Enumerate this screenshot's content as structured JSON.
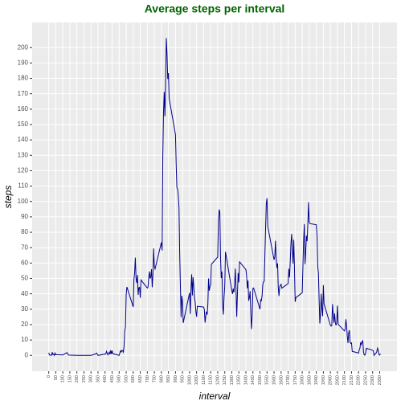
{
  "chart_data": {
    "type": "line",
    "title": "Average  steps per interval",
    "xlabel": "interval",
    "ylabel": "steps",
    "x": [
      0,
      5,
      10,
      15,
      20,
      25,
      30,
      35,
      40,
      45,
      50,
      55,
      100,
      130,
      140,
      200,
      230,
      300,
      330,
      340,
      350,
      405,
      410,
      420,
      430,
      435,
      440,
      445,
      450,
      455,
      500,
      505,
      510,
      515,
      520,
      525,
      530,
      535,
      540,
      545,
      550,
      555,
      600,
      605,
      610,
      615,
      620,
      625,
      630,
      635,
      640,
      645,
      650,
      655,
      700,
      705,
      710,
      715,
      720,
      725,
      730,
      735,
      740,
      745,
      750,
      755,
      800,
      805,
      810,
      815,
      820,
      825,
      830,
      835,
      840,
      845,
      850,
      855,
      900,
      905,
      910,
      915,
      920,
      925,
      930,
      935,
      940,
      945,
      950,
      955,
      1000,
      1005,
      1010,
      1015,
      1020,
      1025,
      1030,
      1035,
      1040,
      1045,
      1050,
      1055,
      1100,
      1105,
      1110,
      1115,
      1120,
      1125,
      1130,
      1135,
      1140,
      1145,
      1150,
      1155,
      1200,
      1205,
      1210,
      1215,
      1220,
      1225,
      1230,
      1235,
      1240,
      1245,
      1250,
      1255,
      1300,
      1305,
      1310,
      1315,
      1320,
      1325,
      1330,
      1335,
      1340,
      1345,
      1350,
      1355,
      1400,
      1405,
      1410,
      1415,
      1420,
      1425,
      1430,
      1435,
      1440,
      1445,
      1450,
      1455,
      1500,
      1505,
      1510,
      1515,
      1520,
      1525,
      1530,
      1535,
      1540,
      1545,
      1550,
      1555,
      1600,
      1605,
      1610,
      1615,
      1620,
      1625,
      1630,
      1635,
      1640,
      1645,
      1650,
      1655,
      1700,
      1705,
      1710,
      1715,
      1720,
      1725,
      1730,
      1735,
      1740,
      1745,
      1750,
      1755,
      1800,
      1805,
      1810,
      1815,
      1820,
      1825,
      1830,
      1835,
      1840,
      1845,
      1850,
      1855,
      1900,
      1905,
      1910,
      1915,
      1920,
      1925,
      1930,
      1935,
      1940,
      1945,
      1950,
      1955,
      2000,
      2005,
      2010,
      2015,
      2020,
      2025,
      2030,
      2035,
      2040,
      2045,
      2050,
      2055,
      2100,
      2105,
      2110,
      2115,
      2120,
      2125,
      2130,
      2135,
      2140,
      2145,
      2150,
      2155,
      2200,
      2205,
      2210,
      2215,
      2220,
      2225,
      2230,
      2235,
      2240,
      2245,
      2250,
      2255,
      2300,
      2305,
      2310,
      2315,
      2320,
      2325,
      2330,
      2335,
      2340,
      2345,
      2350,
      2355
    ],
    "values": [
      1.7,
      0.3,
      0.1,
      0.2,
      0.1,
      2.1,
      0.5,
      0.9,
      0,
      1.5,
      0.4,
      0.5,
      0.3,
      1.8,
      0.2,
      0,
      0,
      0,
      0.8,
      1.5,
      0,
      0.9,
      2.6,
      0.3,
      2.1,
      0.7,
      3.3,
      0.9,
      3.1,
      1.1,
      0,
      1.6,
      3,
      2.2,
      3.3,
      3,
      2.1,
      6,
      16,
      18.3,
      39.5,
      44.5,
      31.5,
      49.3,
      53.8,
      63.5,
      50,
      47.1,
      52.2,
      39.3,
      44,
      44.2,
      37.4,
      49,
      43.8,
      44.4,
      50.5,
      54.5,
      49.9,
      51,
      56,
      44.3,
      52.3,
      69.5,
      57.8,
      56.2,
      73.4,
      68.2,
      129.4,
      157.5,
      171.2,
      155.4,
      177.3,
      206.2,
      195.9,
      179.6,
      183.4,
      167,
      143.5,
      124,
      109.1,
      108.1,
      103.7,
      95.96,
      66.2,
      45.2,
      24.8,
      38.8,
      34.98,
      21.1,
      40.6,
      26.98,
      42.4,
      52.7,
      38.9,
      50.8,
      44.3,
      37.4,
      34.7,
      28.3,
      25.1,
      31.9,
      31.4,
      29.7,
      21.3,
      25.5,
      28.4,
      26.5,
      33.4,
      49.98,
      42,
      44.6,
      46,
      59.2,
      63.9,
      87.6,
      94.8,
      92.8,
      63.4,
      50.2,
      54.5,
      32.4,
      26.5,
      37.7,
      45.1,
      67.3,
      42.3,
      39.9,
      43.3,
      40.98,
      46.2,
      56.4,
      42.8,
      25.1,
      39.97,
      53.5,
      47.4,
      60.8,
      55.8,
      51.96,
      43.6,
      48.7,
      35.5,
      37.5,
      41.8,
      27.5,
      17.1,
      26.1,
      43.6,
      43.8,
      30,
      36.1,
      35.5,
      38.8,
      45.96,
      47.8,
      48.1,
      65.3,
      82.9,
      98.7,
      102.1,
      83.96,
      62.1,
      64.1,
      74.5,
      63.2,
      56.9,
      59.8,
      43.9,
      38.6,
      44.7,
      45.5,
      46.2,
      43.7,
      46.6,
      56.3,
      50.7,
      61.2,
      72.7,
      78.9,
      68.9,
      59.7,
      75.1,
      56.5,
      34.8,
      37.5,
      40.7,
      58,
      74.7,
      85.3,
      59.3,
      67.8,
      77.7,
      74.2,
      85.3,
      99.5,
      86.6,
      85.6,
      84.9,
      77.8,
      58,
      53.4,
      36.3,
      20.7,
      27.4,
      40,
      30.2,
      25.5,
      45.7,
      33.5,
      19.6,
      19,
      19.3,
      33.3,
      26.8,
      21.2,
      27.3,
      21.3,
      19.5,
      21.3,
      32.3,
      20.2,
      15.9,
      17.2,
      23.5,
      19.2,
      12.5,
      8,
      14.7,
      16.3,
      8.7,
      7.8,
      8.1,
      2.6,
      1.5,
      3.7,
      4.8,
      8.5,
      7.1,
      8.7,
      9.8,
      2.2,
      0.3,
      0.1,
      1.6,
      4.6,
      3.3,
      2.8,
      0,
      0.8,
      1,
      1.6,
      2.6,
      4.7,
      3.3,
      0.6,
      0.2,
      1.1
    ],
    "color": "#00008b",
    "xlim": [
      -117.75,
      2472.75
    ],
    "xticks": [
      0,
      50,
      100,
      150,
      200,
      250,
      300,
      350,
      400,
      450,
      500,
      550,
      600,
      650,
      700,
      750,
      800,
      850,
      900,
      950,
      1000,
      1050,
      1100,
      1150,
      1200,
      1250,
      1300,
      1350,
      1400,
      1450,
      1500,
      1550,
      1600,
      1650,
      1700,
      1750,
      1800,
      1850,
      1900,
      1950,
      2000,
      2050,
      2100,
      2150,
      2200,
      2250,
      2300,
      2350
    ],
    "ylim": [
      -10.3,
      216.3
    ],
    "yticks": [
      0,
      10,
      20,
      30,
      40,
      50,
      60,
      70,
      80,
      90,
      100,
      110,
      120,
      130,
      140,
      150,
      160,
      170,
      180,
      190,
      200
    ],
    "grid": true
  }
}
